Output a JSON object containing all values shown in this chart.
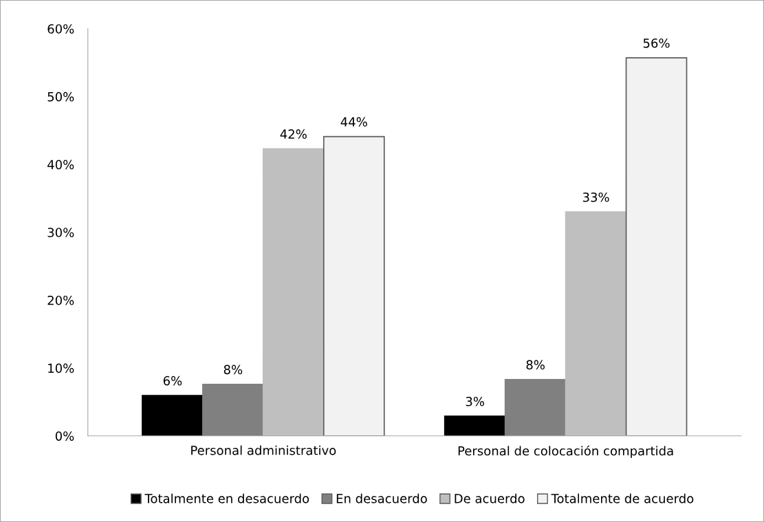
{
  "chart_data": {
    "type": "bar",
    "categories": [
      "Personal administrativo",
      "Personal de colocación compartida"
    ],
    "series": [
      {
        "name": "Totalmente en desacuerdo",
        "color": "#000000",
        "values": [
          5.95,
          2.9
        ],
        "value_labels": [
          "6%",
          "3%"
        ]
      },
      {
        "name": "En desacuerdo",
        "color": "#808080",
        "values": [
          7.6,
          8.3
        ],
        "value_labels": [
          "8%",
          "8%"
        ]
      },
      {
        "name": "De acuerdo",
        "color": "#bfbfbf",
        "values": [
          42.3,
          33.0
        ],
        "value_labels": [
          "42%",
          "33%"
        ]
      },
      {
        "name": "Totalmente de acuerdo",
        "color": "#f2f2f2",
        "values": [
          44.1,
          55.7
        ],
        "value_labels": [
          "44%",
          "56%"
        ]
      }
    ],
    "ylim": [
      0,
      60
    ],
    "yticks": [
      {
        "value": 0,
        "label": "0%"
      },
      {
        "value": 10,
        "label": "10%"
      },
      {
        "value": 20,
        "label": "20%"
      },
      {
        "value": 30,
        "label": "30%"
      },
      {
        "value": 40,
        "label": "40%"
      },
      {
        "value": 50,
        "label": "50%"
      },
      {
        "value": 60,
        "label": "60%"
      }
    ],
    "grid": false,
    "legend": "bottom"
  }
}
